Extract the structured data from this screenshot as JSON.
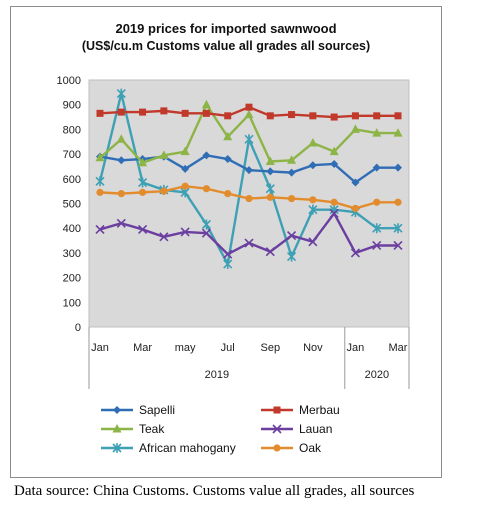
{
  "chart_data": {
    "type": "line",
    "title": "2019 prices for imported sawnwood",
    "subtitle": "(US$/cu.m Customs value all grades all sources)",
    "xlabel": "",
    "ylabel": "",
    "ylim": [
      0,
      1000
    ],
    "yticks": [
      0,
      100,
      200,
      300,
      400,
      500,
      600,
      700,
      800,
      900,
      1000
    ],
    "grid": false,
    "legend_position": "bottom",
    "x": [
      "Jan 2019",
      "Feb 2019",
      "Mar 2019",
      "Apr 2019",
      "May 2019",
      "Jun 2019",
      "Jul 2019",
      "Aug 2019",
      "Sep 2019",
      "Oct 2019",
      "Nov 2019",
      "Dec 2019",
      "Jan 2020",
      "Feb 2020",
      "Mar 2020"
    ],
    "x_tick_labels": [
      "Jan",
      "Mar",
      "may",
      "Jul",
      "Sep",
      "Nov",
      "Jan",
      "Mar"
    ],
    "x_group_labels": [
      "2019",
      "2020"
    ],
    "series": [
      {
        "name": "Sapelli",
        "color": "#2f6db5",
        "marker": "diamond",
        "values": [
          690,
          675,
          680,
          690,
          640,
          695,
          680,
          635,
          630,
          625,
          655,
          660,
          585,
          645,
          645
        ]
      },
      {
        "name": "Merbau",
        "color": "#c0392b",
        "marker": "square",
        "values": [
          865,
          870,
          870,
          875,
          865,
          865,
          855,
          890,
          855,
          860,
          855,
          850,
          855,
          855,
          855
        ]
      },
      {
        "name": "Teak",
        "color": "#8db446",
        "marker": "triangle",
        "values": [
          685,
          760,
          665,
          695,
          710,
          900,
          770,
          860,
          670,
          675,
          745,
          710,
          800,
          785,
          785
        ]
      },
      {
        "name": "Lauan",
        "color": "#6b3fa0",
        "marker": "x",
        "values": [
          395,
          420,
          395,
          365,
          385,
          380,
          295,
          340,
          305,
          370,
          345,
          460,
          300,
          330,
          330
        ]
      },
      {
        "name": "African mahogany",
        "color": "#3ea0b4",
        "marker": "star",
        "values": [
          590,
          945,
          585,
          555,
          545,
          415,
          255,
          760,
          560,
          285,
          475,
          475,
          465,
          400,
          400
        ]
      },
      {
        "name": "Oak",
        "color": "#e38c2d",
        "marker": "circle",
        "values": [
          545,
          540,
          545,
          550,
          570,
          560,
          540,
          520,
          525,
          520,
          515,
          505,
          480,
          505,
          505
        ]
      }
    ]
  },
  "caption": "Data source: China Customs. Customs value all grades, all sources"
}
